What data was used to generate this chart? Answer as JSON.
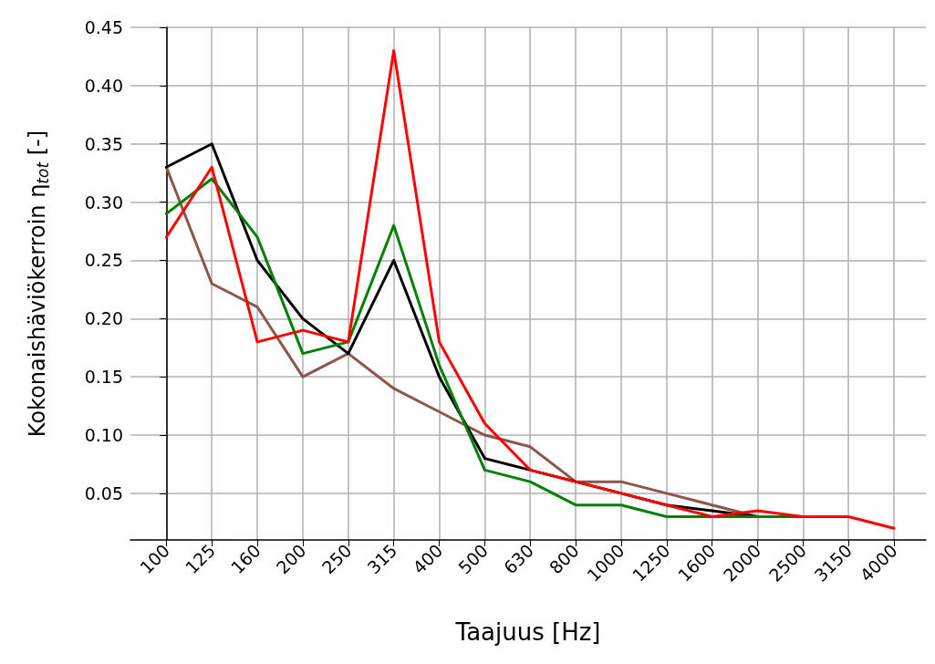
{
  "chart_data": {
    "type": "line",
    "xlabel": "Taajuus [Hz]",
    "ylabel": "Kokonaishäviökerroin η$_{tot}$ [-]",
    "categories": [
      "100",
      "125",
      "160",
      "200",
      "250",
      "315",
      "400",
      "500",
      "630",
      "800",
      "1000",
      "1250",
      "1600",
      "2000",
      "2500",
      "3150",
      "4000"
    ],
    "series": [
      {
        "color": "#8c564b",
        "values": [
          0.33,
          0.23,
          0.21,
          0.15,
          0.17,
          0.14,
          0.12,
          0.1,
          0.09,
          0.06,
          0.06,
          0.05,
          0.04,
          0.03,
          null,
          null,
          null
        ]
      },
      {
        "color": "#000000",
        "values": [
          0.33,
          0.35,
          0.25,
          0.2,
          0.17,
          0.25,
          0.15,
          0.08,
          0.07,
          0.06,
          0.05,
          0.04,
          0.035,
          0.03,
          null,
          null,
          null
        ]
      },
      {
        "color": "#008000",
        "values": [
          0.29,
          0.32,
          0.27,
          0.17,
          0.18,
          0.28,
          0.16,
          0.07,
          0.06,
          0.04,
          0.04,
          0.03,
          0.03,
          0.03,
          0.03,
          null,
          null
        ]
      },
      {
        "color": "#ff0000",
        "values": [
          0.27,
          0.33,
          0.18,
          0.19,
          0.18,
          0.43,
          0.18,
          0.11,
          0.07,
          0.06,
          0.05,
          0.04,
          0.03,
          0.035,
          0.03,
          0.03,
          0.02
        ]
      }
    ],
    "ylim": [
      0.01,
      0.45
    ],
    "yticks": [
      {
        "value": 0.05,
        "label": "0.05"
      },
      {
        "value": 0.1,
        "label": "0.10"
      },
      {
        "value": 0.15,
        "label": "0.15"
      },
      {
        "value": 0.2,
        "label": "0.20"
      },
      {
        "value": 0.25,
        "label": "0.25"
      },
      {
        "value": 0.3,
        "label": "0.30"
      },
      {
        "value": 0.35,
        "label": "0.35"
      },
      {
        "value": 0.4,
        "label": "0.40"
      },
      {
        "value": 0.45,
        "label": "0.45"
      }
    ],
    "grid": true,
    "line_style": "solid",
    "marker": "none"
  }
}
